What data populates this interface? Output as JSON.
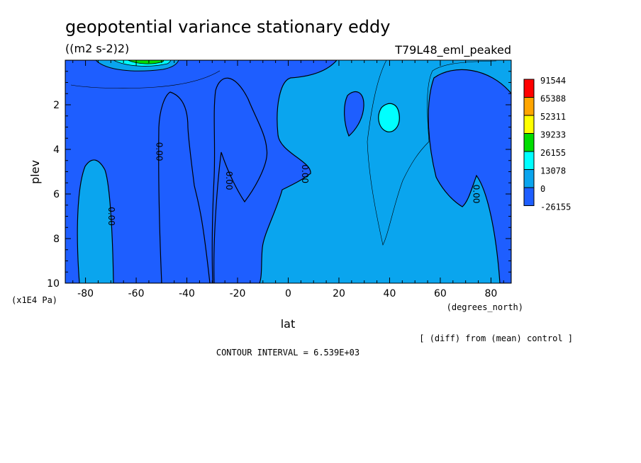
{
  "chart_data": {
    "type": "heatmap",
    "title": "geopotential variance stationary eddy",
    "units": "((m2 s-2)2)",
    "experiment": "T79L48_eml_peaked",
    "xlabel": "lat",
    "xunits": "(degrees_north)",
    "ylabel": "plev",
    "yunits": "(x1E4 Pa)",
    "xlim": [
      -88,
      88
    ],
    "ylim": [
      0,
      10
    ],
    "y_inverted": true,
    "x_ticks": [
      -80,
      -60,
      -40,
      -20,
      0,
      20,
      40,
      60,
      80
    ],
    "x_tick_labels": [
      "-80",
      "-60",
      "-40",
      "-20",
      "0",
      "20",
      "40",
      "60",
      "80"
    ],
    "y_ticks": [
      2,
      4,
      6,
      8,
      10
    ],
    "y_tick_labels": [
      "2",
      "4",
      "6",
      "8",
      "10"
    ],
    "contour_labels": [
      "0.00",
      "0.00",
      "0.00",
      "0.00",
      "0.00"
    ],
    "colorbar": {
      "levels": [
        "91544",
        "65388",
        "52311",
        "39233",
        "26155",
        "13078",
        "0",
        "-26155"
      ],
      "colors": [
        "#ff0000",
        "#ffa500",
        "#ffff00",
        "#00dd00",
        "#00ffff",
        "#0aa5ee",
        "#1e5eff"
      ]
    },
    "note": "[ (diff) from (mean) control ]",
    "contour_interval": "CONTOUR INTERVAL = 6.539E+03"
  }
}
